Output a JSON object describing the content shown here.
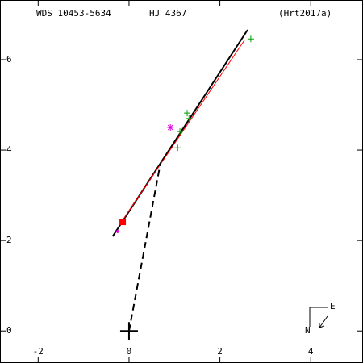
{
  "chart_data": {
    "type": "scatter",
    "title": "WDS 10453-5634",
    "subtitle": "HJ 4367",
    "reference": "(Hrt2017a)",
    "xlim": [
      -2.84,
      5.15
    ],
    "ylim": [
      -0.71,
      7.32
    ],
    "xticks": [
      -2,
      0,
      2,
      4
    ],
    "yticks": [
      0,
      2,
      4,
      6
    ],
    "primary": {
      "x": 0,
      "y": 0
    },
    "compass": {
      "north": "N",
      "east": "E"
    },
    "series": [
      {
        "style": "line",
        "color": "#000000",
        "x": [
          -0.36,
          2.61
        ],
        "values": [
          2.09,
          6.66
        ]
      },
      {
        "style": "thin",
        "color": "#ff0000",
        "x": [
          -0.18,
          2.54
        ],
        "values": [
          2.39,
          6.43
        ]
      },
      {
        "style": "dashed",
        "color": "#000000",
        "x": [
          0,
          0.69
        ],
        "values": [
          0,
          3.7
        ]
      },
      {
        "style": "plus",
        "color": "#00a000",
        "x": [
          2.68,
          1.28,
          1.32,
          1.12,
          1.07
        ],
        "values": [
          6.46,
          4.82,
          4.7,
          4.41,
          4.05
        ]
      },
      {
        "style": "asterisk",
        "color": "#e000e0",
        "x": [
          0.91
        ],
        "values": [
          4.5
        ]
      },
      {
        "style": "dot",
        "color": "#e000e0",
        "x": [
          -0.25
        ],
        "values": [
          2.2
        ]
      },
      {
        "style": "square",
        "color": "#ff0000",
        "x": [
          -0.14
        ],
        "values": [
          2.41
        ]
      }
    ]
  }
}
